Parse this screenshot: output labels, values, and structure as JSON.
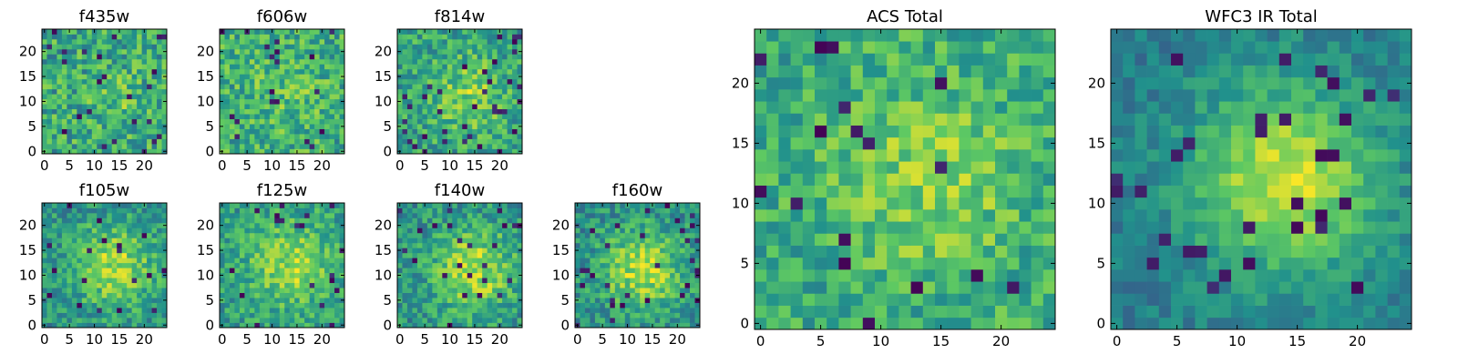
{
  "figure": {
    "background": "#ffffff"
  },
  "colormap": {
    "name": "viridis",
    "stops": [
      "#440154",
      "#3b528b",
      "#21918c",
      "#5ec962",
      "#fde725"
    ]
  },
  "chart_data": [
    {
      "type": "heatmap",
      "title": "f435w",
      "xlim": [
        -0.5,
        24.5
      ],
      "ylim": [
        -0.5,
        24.5
      ],
      "xticks": [
        0,
        5,
        10,
        15,
        20
      ],
      "yticks": [
        0,
        5,
        10,
        15,
        20
      ],
      "grid": false,
      "shape": [
        25,
        25
      ],
      "pattern": {
        "base": 0.6,
        "noise": 0.38,
        "blob_peak": 0.12,
        "blob_center": [
          15,
          10
        ],
        "blob_sigma": 4,
        "dark_fraction": 0.04
      }
    },
    {
      "type": "heatmap",
      "title": "f606w",
      "xlim": [
        -0.5,
        24.5
      ],
      "ylim": [
        -0.5,
        24.5
      ],
      "xticks": [
        0,
        5,
        10,
        15,
        20
      ],
      "yticks": [
        0,
        5,
        10,
        15,
        20
      ],
      "grid": false,
      "shape": [
        25,
        25
      ],
      "pattern": {
        "base": 0.62,
        "noise": 0.36,
        "blob_peak": 0.1,
        "blob_center": [
          13,
          12
        ],
        "blob_sigma": 5,
        "dark_fraction": 0.03
      }
    },
    {
      "type": "heatmap",
      "title": "f814w",
      "xlim": [
        -0.5,
        24.5
      ],
      "ylim": [
        -0.5,
        24.5
      ],
      "xticks": [
        0,
        5,
        10,
        15,
        20
      ],
      "yticks": [
        0,
        5,
        10,
        15,
        20
      ],
      "grid": false,
      "shape": [
        25,
        25
      ],
      "pattern": {
        "base": 0.58,
        "noise": 0.34,
        "blob_peak": 0.22,
        "blob_center": [
          14,
          11
        ],
        "blob_sigma": 5,
        "dark_fraction": 0.04
      }
    },
    {
      "type": "heatmap",
      "title": "f105w",
      "xlim": [
        -0.5,
        24.5
      ],
      "ylim": [
        -0.5,
        24.5
      ],
      "xticks": [
        0,
        5,
        10,
        15,
        20
      ],
      "yticks": [
        0,
        5,
        10,
        15,
        20
      ],
      "grid": false,
      "shape": [
        25,
        25
      ],
      "pattern": {
        "base": 0.5,
        "noise": 0.3,
        "blob_peak": 0.35,
        "blob_center": [
          14,
          12
        ],
        "blob_sigma": 6,
        "dark_fraction": 0.03
      }
    },
    {
      "type": "heatmap",
      "title": "f125w",
      "xlim": [
        -0.5,
        24.5
      ],
      "ylim": [
        -0.5,
        24.5
      ],
      "xticks": [
        0,
        5,
        10,
        15,
        20
      ],
      "yticks": [
        0,
        5,
        10,
        15,
        20
      ],
      "grid": false,
      "shape": [
        25,
        25
      ],
      "pattern": {
        "base": 0.55,
        "noise": 0.3,
        "blob_peak": 0.3,
        "blob_center": [
          14,
          12
        ],
        "blob_sigma": 6,
        "dark_fraction": 0.04
      }
    },
    {
      "type": "heatmap",
      "title": "f140w",
      "xlim": [
        -0.5,
        24.5
      ],
      "ylim": [
        -0.5,
        24.5
      ],
      "xticks": [
        0,
        5,
        10,
        15,
        20
      ],
      "yticks": [
        0,
        5,
        10,
        15,
        20
      ],
      "grid": false,
      "shape": [
        25,
        25
      ],
      "pattern": {
        "base": 0.5,
        "noise": 0.3,
        "blob_peak": 0.38,
        "blob_center": [
          15,
          11
        ],
        "blob_sigma": 6,
        "dark_fraction": 0.04
      }
    },
    {
      "type": "heatmap",
      "title": "f160w",
      "xlim": [
        -0.5,
        24.5
      ],
      "ylim": [
        -0.5,
        24.5
      ],
      "xticks": [
        0,
        5,
        10,
        15,
        20
      ],
      "yticks": [
        0,
        5,
        10,
        15,
        20
      ],
      "grid": false,
      "shape": [
        25,
        25
      ],
      "pattern": {
        "base": 0.48,
        "noise": 0.3,
        "blob_peak": 0.4,
        "blob_center": [
          13,
          11
        ],
        "blob_sigma": 6,
        "dark_fraction": 0.05
      }
    },
    {
      "type": "heatmap",
      "title": "ACS Total",
      "xlim": [
        -0.5,
        24.5
      ],
      "ylim": [
        -0.5,
        24.5
      ],
      "xticks": [
        0,
        5,
        10,
        15,
        20
      ],
      "yticks": [
        0,
        5,
        10,
        15,
        20
      ],
      "grid": false,
      "shape": [
        25,
        25
      ],
      "pattern": {
        "base": 0.6,
        "noise": 0.3,
        "blob_peak": 0.2,
        "blob_center": [
          14,
          12
        ],
        "blob_sigma": 6,
        "dark_fraction": 0.03
      }
    },
    {
      "type": "heatmap",
      "title": "WFC3 IR Total",
      "xlim": [
        -0.5,
        24.5
      ],
      "ylim": [
        -0.5,
        24.5
      ],
      "xticks": [
        0,
        5,
        10,
        15,
        20
      ],
      "yticks": [
        0,
        5,
        10,
        15,
        20
      ],
      "grid": false,
      "shape": [
        25,
        25
      ],
      "pattern": {
        "base": 0.42,
        "noise": 0.18,
        "blob_peak": 0.5,
        "blob_center": [
          14,
          12
        ],
        "blob_sigma": 5.5,
        "dark_fraction": 0.04
      }
    }
  ]
}
